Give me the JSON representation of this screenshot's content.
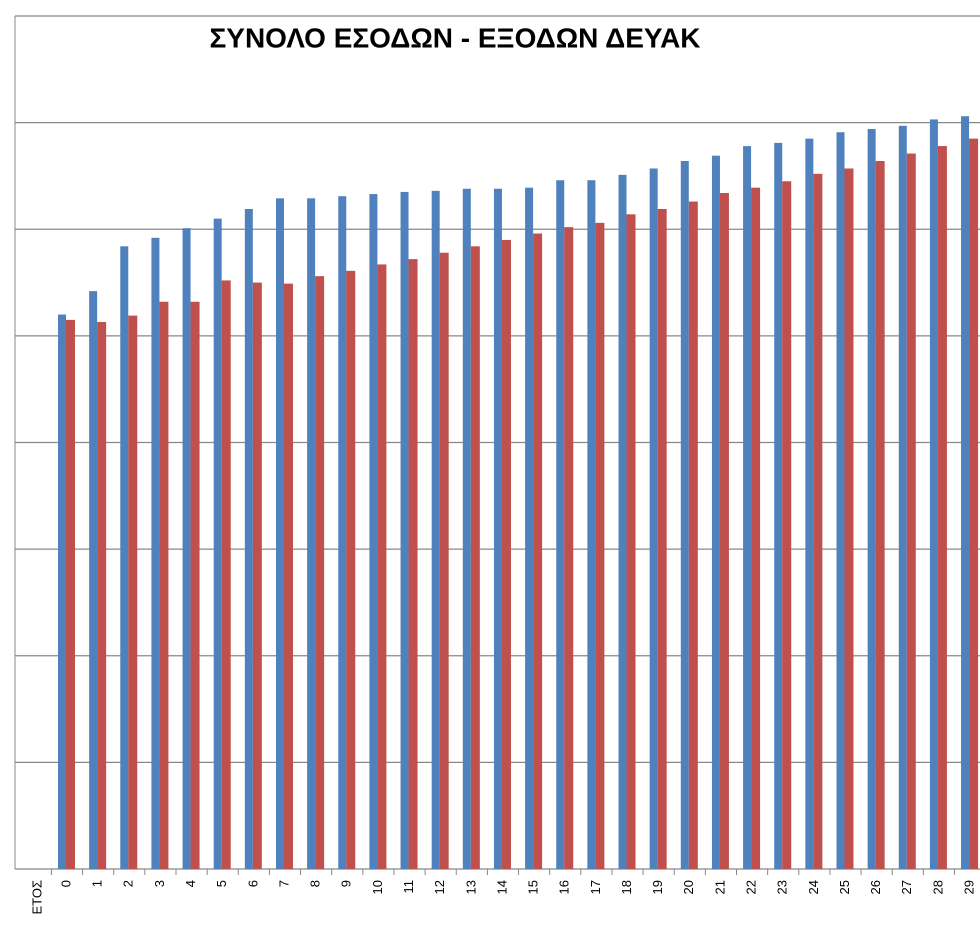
{
  "chart_data": {
    "type": "bar",
    "title": "ΣΥΝΟΛΟ ΕΣΟΔΩΝ - ΕΞΟΔΩΝ ΔΕΥΑΚ",
    "x_label": "ΕΤΟΣ",
    "categories": [
      "0",
      "1",
      "2",
      "3",
      "4",
      "5",
      "6",
      "7",
      "8",
      "9",
      "10",
      "11",
      "12",
      "13",
      "14",
      "15",
      "16",
      "17",
      "18",
      "19",
      "20",
      "21",
      "22",
      "23",
      "24",
      "25",
      "26",
      "27",
      "28",
      "29"
    ],
    "series": [
      {
        "color": "#4f81bd",
        "values": [
          5.2,
          5.42,
          5.84,
          5.92,
          6.01,
          6.1,
          6.19,
          6.29,
          6.29,
          6.31,
          6.33,
          6.35,
          6.36,
          6.38,
          6.38,
          6.39,
          6.46,
          6.46,
          6.51,
          6.57,
          6.64,
          6.69,
          6.78,
          6.81,
          6.85,
          6.91,
          6.94,
          6.97,
          7.03,
          7.06
        ]
      },
      {
        "color": "#c0504d",
        "values": [
          5.15,
          5.13,
          5.19,
          5.32,
          5.32,
          5.52,
          5.5,
          5.49,
          5.56,
          5.61,
          5.67,
          5.72,
          5.78,
          5.84,
          5.9,
          5.96,
          6.02,
          6.06,
          6.14,
          6.19,
          6.26,
          6.34,
          6.39,
          6.45,
          6.52,
          6.57,
          6.64,
          6.71,
          6.78,
          6.85
        ]
      }
    ],
    "ylim": [
      0,
      8
    ],
    "yticks": [
      0,
      1,
      2,
      3,
      4,
      5,
      6,
      7,
      8
    ],
    "grid": true
  }
}
